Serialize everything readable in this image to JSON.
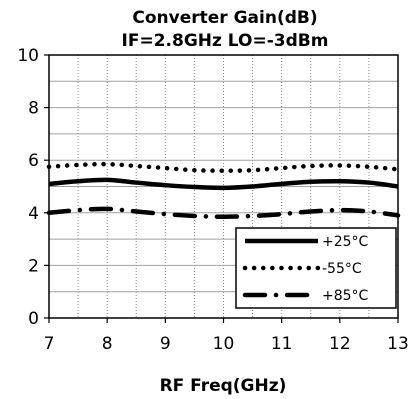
{
  "chart_data": {
    "type": "line",
    "title": "Converter Gain(dB)",
    "subtitle": "IF=2.8GHz LO=-3dBm",
    "xlabel": "RF Freq(GHz)",
    "ylabel": "",
    "xlim": [
      7,
      13
    ],
    "ylim": [
      0,
      10
    ],
    "xticks": [
      7,
      8,
      9,
      10,
      11,
      12,
      13
    ],
    "yticks": [
      0,
      2,
      4,
      6,
      8,
      10
    ],
    "grid": "vertical dotted + horizontal solid",
    "legend_position": "bottom-right",
    "series": [
      {
        "name": "+25°C",
        "style": "solid",
        "color": "#000000",
        "x": [
          7.0,
          7.5,
          8.0,
          8.5,
          9.0,
          9.5,
          10.0,
          10.5,
          11.0,
          11.5,
          12.0,
          12.5,
          13.0
        ],
        "y": [
          5.1,
          5.2,
          5.25,
          5.15,
          5.05,
          4.98,
          4.95,
          5.0,
          5.1,
          5.18,
          5.2,
          5.15,
          5.0
        ]
      },
      {
        "name": "-55°C",
        "style": "dotted",
        "color": "#000000",
        "x": [
          7.0,
          7.5,
          8.0,
          8.5,
          9.0,
          9.5,
          10.0,
          10.5,
          11.0,
          11.5,
          12.0,
          12.5,
          13.0
        ],
        "y": [
          5.75,
          5.82,
          5.85,
          5.78,
          5.7,
          5.62,
          5.6,
          5.62,
          5.7,
          5.78,
          5.8,
          5.75,
          5.65
        ]
      },
      {
        "name": "+85°C",
        "style": "dash-dot",
        "color": "#000000",
        "x": [
          7.0,
          7.5,
          8.0,
          8.5,
          9.0,
          9.5,
          10.0,
          10.5,
          11.0,
          11.5,
          12.0,
          12.5,
          13.0
        ],
        "y": [
          4.0,
          4.1,
          4.15,
          4.05,
          3.95,
          3.88,
          3.85,
          3.88,
          3.95,
          4.05,
          4.1,
          4.05,
          3.9
        ]
      }
    ]
  }
}
